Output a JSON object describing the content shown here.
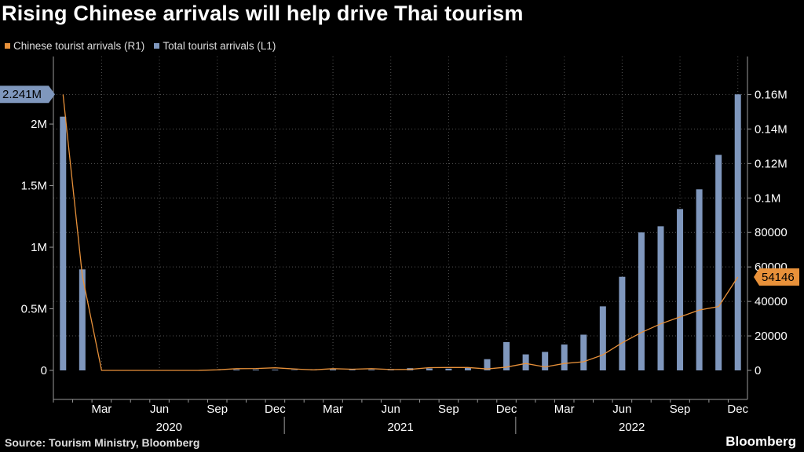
{
  "title": "Rising Chinese arrivals will help drive Thai tourism",
  "footer": {
    "source": "Source: Tourism Ministry, Bloomberg",
    "brand": "Bloomberg"
  },
  "colors": {
    "bars": "#7f97bd",
    "line": "#e8913a",
    "grid": "#555555",
    "axis": "#9a9a9a",
    "text": "#ffffff"
  },
  "chart_data": {
    "type": "bar",
    "legend": [
      {
        "name": "Chinese tourist arrivals (R1)",
        "color": "#e8913a"
      },
      {
        "name": "Total tourist arrivals (L1)",
        "color": "#7f97bd"
      }
    ],
    "x": [
      "2020-01",
      "2020-02",
      "2020-03",
      "2020-04",
      "2020-05",
      "2020-06",
      "2020-07",
      "2020-08",
      "2020-09",
      "2020-10",
      "2020-11",
      "2020-12",
      "2021-01",
      "2021-02",
      "2021-03",
      "2021-04",
      "2021-05",
      "2021-06",
      "2021-07",
      "2021-08",
      "2021-09",
      "2021-10",
      "2021-11",
      "2021-12",
      "2022-01",
      "2022-02",
      "2022-03",
      "2022-04",
      "2022-05",
      "2022-06",
      "2022-07",
      "2022-08",
      "2022-09",
      "2022-10",
      "2022-11",
      "2022-12"
    ],
    "series": [
      {
        "name": "Total tourist arrivals (L1)",
        "chart": "bar",
        "axis": "left",
        "values": [
          2060000,
          820000,
          0,
          0,
          0,
          0,
          0,
          0,
          1200,
          6800,
          6600,
          6500,
          2800,
          1500,
          8000,
          5300,
          5700,
          3700,
          18000,
          16000,
          14000,
          21000,
          91000,
          230000,
          130000,
          150000,
          210000,
          290000,
          520000,
          760000,
          1120000,
          1170000,
          1310000,
          1470000,
          1750000,
          2241000
        ]
      },
      {
        "name": "Chinese tourist arrivals (R1)",
        "chart": "line",
        "axis": "right",
        "values": [
          160000,
          55000,
          0,
          0,
          0,
          0,
          0,
          0,
          300,
          1000,
          1100,
          1500,
          800,
          300,
          1000,
          700,
          1000,
          500,
          600,
          1600,
          1700,
          1700,
          800,
          1900,
          4000,
          2000,
          4000,
          5000,
          9000,
          16000,
          22000,
          27000,
          31000,
          35000,
          37000,
          54146
        ]
      }
    ],
    "left_axis": {
      "ticks": [
        "0",
        "0.5M",
        "1M",
        "1.5M",
        "2M"
      ],
      "values": [
        0,
        500000,
        1000000,
        1500000,
        2000000
      ],
      "max": 2370000,
      "last_value_label": "2.241M"
    },
    "right_axis": {
      "ticks": [
        "0",
        "20000",
        "40000",
        "60000",
        "80000",
        "0.1M",
        "0.12M",
        "0.14M",
        "0.16M"
      ],
      "values": [
        0,
        20000,
        40000,
        60000,
        80000,
        100000,
        120000,
        140000,
        160000
      ],
      "max": 169300,
      "last_value_label": "54146"
    },
    "x_tick_labels": [
      {
        "label": "Mar",
        "index": 2
      },
      {
        "label": "Jun",
        "index": 5
      },
      {
        "label": "Sep",
        "index": 8
      },
      {
        "label": "Dec",
        "index": 11
      },
      {
        "label": "Mar",
        "index": 14
      },
      {
        "label": "Jun",
        "index": 17
      },
      {
        "label": "Sep",
        "index": 20
      },
      {
        "label": "Dec",
        "index": 23
      },
      {
        "label": "Mar",
        "index": 26
      },
      {
        "label": "Jun",
        "index": 29
      },
      {
        "label": "Sep",
        "index": 32
      },
      {
        "label": "Dec",
        "index": 35
      }
    ],
    "year_labels": [
      {
        "label": "2020",
        "start": 0,
        "end": 11
      },
      {
        "label": "2021",
        "start": 12,
        "end": 23
      },
      {
        "label": "2022",
        "start": 24,
        "end": 35
      }
    ],
    "grid": true
  }
}
